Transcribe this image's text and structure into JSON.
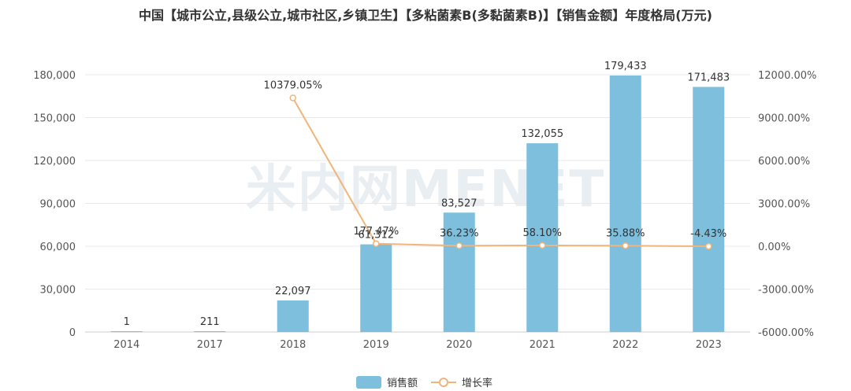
{
  "watermark": "米内网MENET",
  "colors": {
    "bar": "#7dbfdc",
    "line": "#f0b57a",
    "grid": "#e8e8e8",
    "axis_text": "#555555"
  },
  "chart_data": {
    "type": "bar",
    "title": "中国【城市公立,县级公立,城市社区,乡镇卫生】【多粘菌素B(多黏菌素B)】【销售金额】年度格局(万元)",
    "categories": [
      "2014",
      "2017",
      "2018",
      "2019",
      "2020",
      "2021",
      "2022",
      "2023"
    ],
    "series": [
      {
        "name": "销售额",
        "type": "bar",
        "axis": "left",
        "values": [
          1,
          211,
          22097,
          61312,
          83527,
          132055,
          179433,
          171483
        ],
        "labels": [
          "1",
          "211",
          "22,097",
          "61,312",
          "83,527",
          "132,055",
          "179,433",
          "171,483"
        ]
      },
      {
        "name": "增长率",
        "type": "line",
        "axis": "right",
        "values": [
          null,
          null,
          10379.05,
          177.47,
          36.23,
          58.1,
          35.88,
          -4.43
        ],
        "labels": [
          "",
          "",
          "10379.05%",
          "177.47%",
          "36.23%",
          "58.10%",
          "35.88%",
          "-4.43%"
        ]
      }
    ],
    "y_left": {
      "min": 0,
      "max": 180000,
      "ticks": [
        0,
        30000,
        60000,
        90000,
        120000,
        150000,
        180000
      ],
      "tick_labels": [
        "0",
        "30,000",
        "60,000",
        "90,000",
        "120,000",
        "150,000",
        "180,000"
      ]
    },
    "y_right": {
      "min": -6000,
      "max": 12000,
      "ticks": [
        -6000,
        -3000,
        0,
        3000,
        6000,
        9000,
        12000
      ],
      "tick_labels": [
        "-6000.00%",
        "-3000.00%",
        "0.00%",
        "3000.00%",
        "6000.00%",
        "9000.00%",
        "12000.00%"
      ]
    },
    "grid": true,
    "legend": "bottom-center"
  }
}
